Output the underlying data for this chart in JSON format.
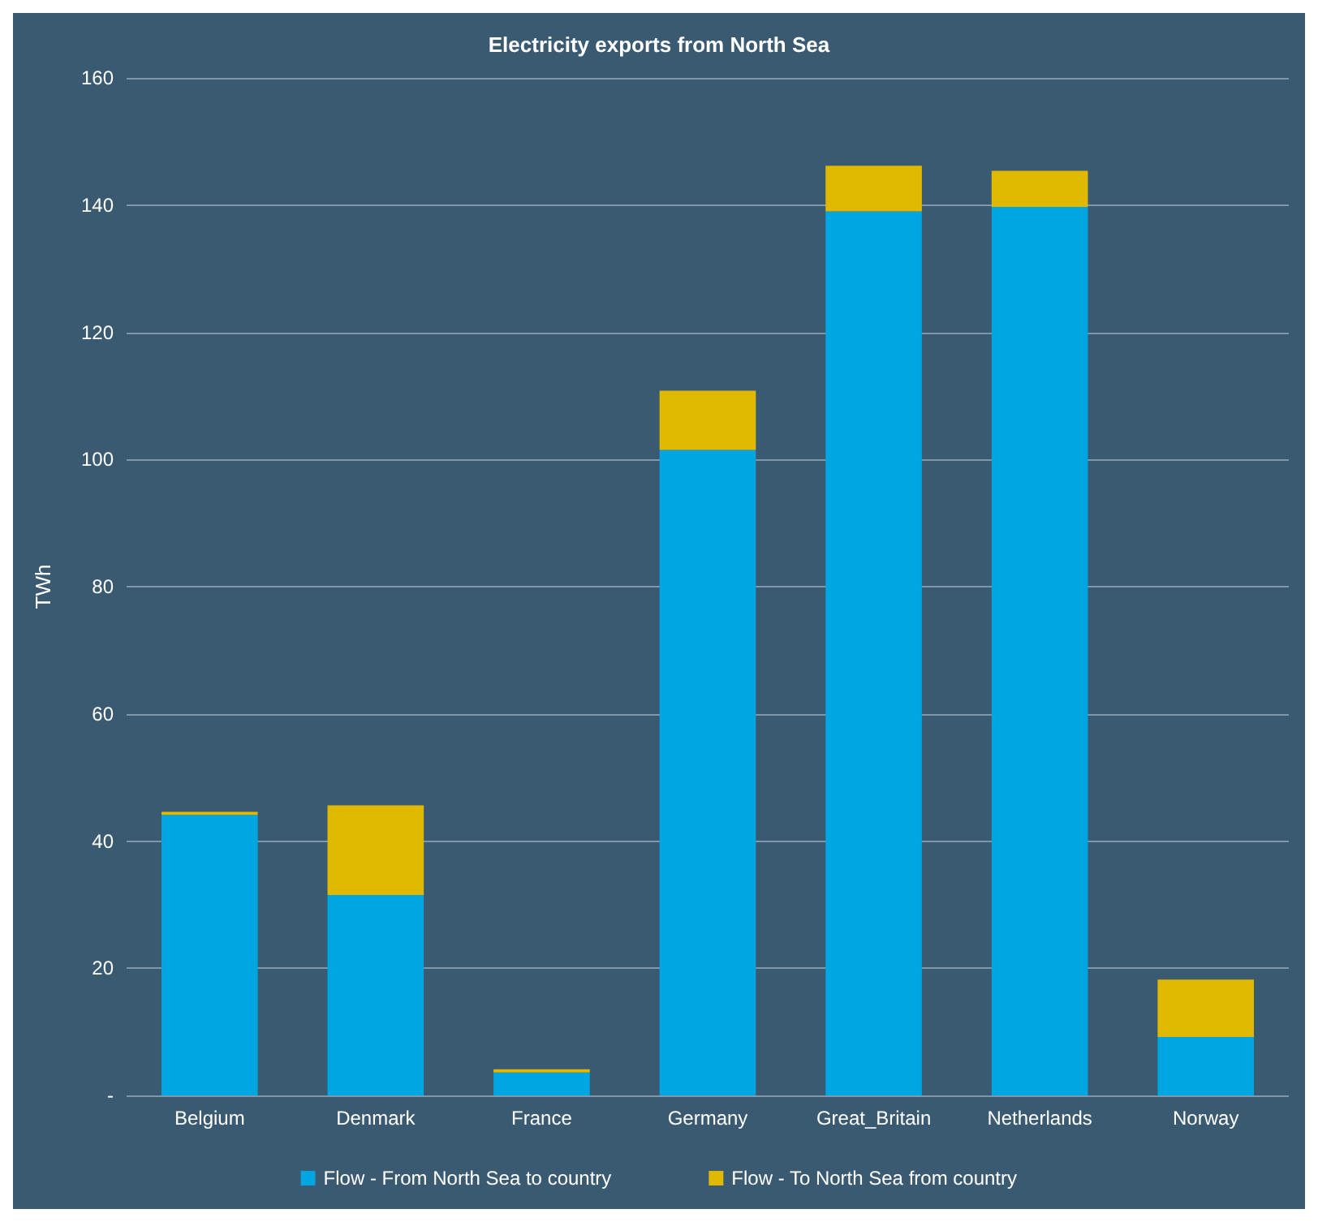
{
  "chart_data": {
    "type": "bar",
    "title": "Electricity exports from North Sea",
    "ylabel": "TWh",
    "categories": [
      "Belgium",
      "Denmark",
      "France",
      "Germany",
      "Great_Britain",
      "Netherlands",
      "Norway"
    ],
    "series": [
      {
        "name": "Flow - From North Sea to country",
        "color": "#00a6e2",
        "values": [
          44.1,
          31.5,
          3.6,
          101.5,
          139.0,
          139.7,
          9.2
        ]
      },
      {
        "name": "Flow - To North Sea from country",
        "color": "#e0b800",
        "values": [
          0.5,
          14.1,
          0.5,
          9.3,
          7.2,
          5.7,
          9.0
        ]
      }
    ],
    "stacked": true,
    "ylim": [
      0,
      160
    ],
    "yticks": [
      {
        "value": 0,
        "label": "-"
      },
      20,
      40,
      60,
      80,
      100,
      120,
      140,
      160
    ],
    "grid": "y",
    "legend": "bottom"
  }
}
